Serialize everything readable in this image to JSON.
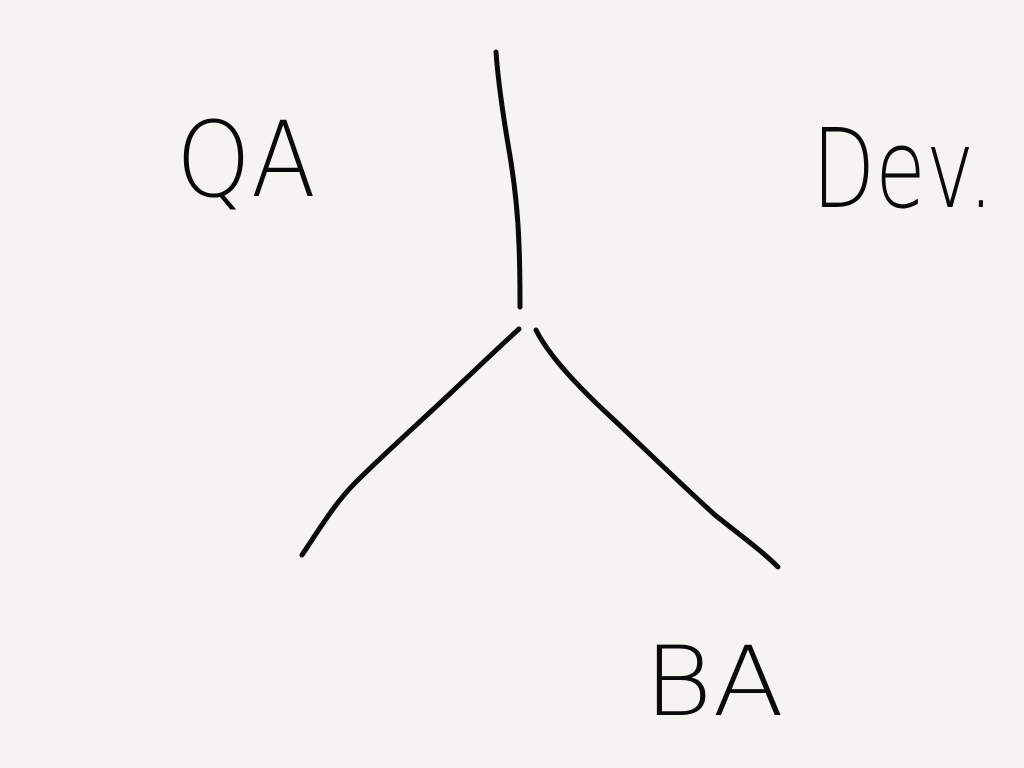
{
  "colors": {
    "background": "#f5f4f1",
    "ink": "#0a0a0a"
  },
  "labels": {
    "top_left": "QA",
    "top_right": "Dev.",
    "bottom_right": "BA"
  }
}
